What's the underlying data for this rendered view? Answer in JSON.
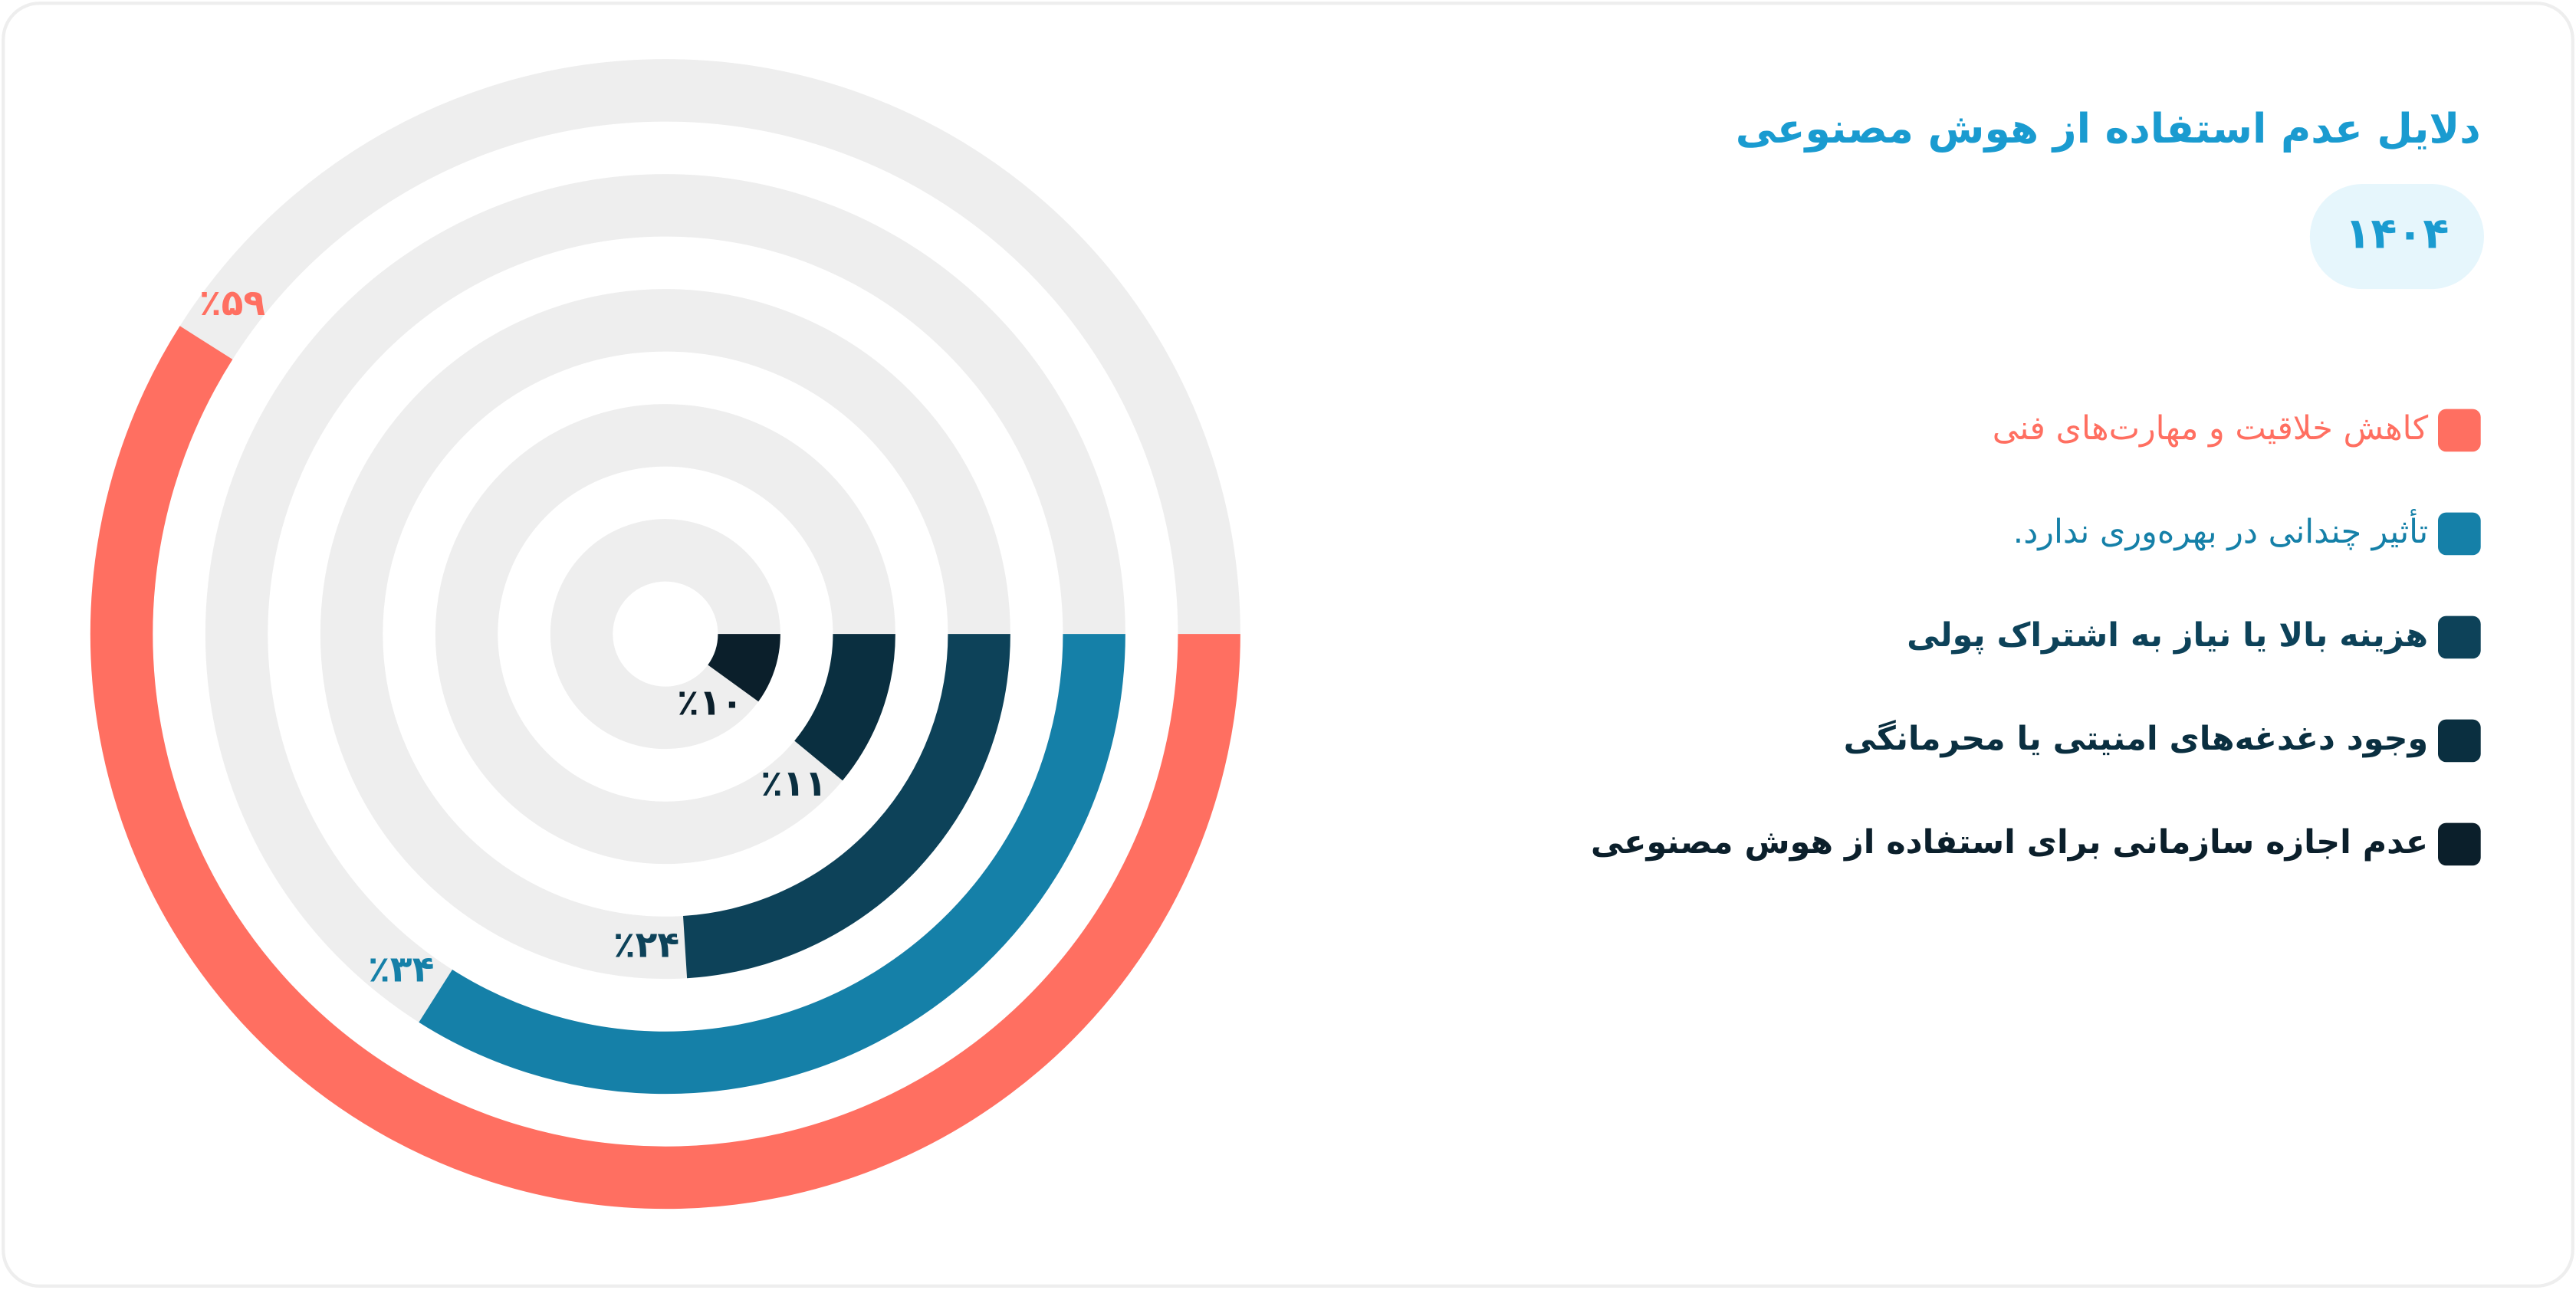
{
  "chart_data": {
    "type": "radial_bar",
    "title": "دلایل عدم استفاده از هوش مصنوعی",
    "subtitle": "۱۴۰۴",
    "categories": [
      "کاهش خلاقیت و مهارت‌های فنی",
      "تأثیر چندانی در بهره‌وری ندارد.",
      "هزینه بالا یا نیاز به اشتراک پولی",
      "وجود دغدغه‌های امنیتی یا محرمانگی",
      "عدم اجازه سازمانی برای استفاده از هوش مصنوعی"
    ],
    "values": [
      59,
      34,
      24,
      11,
      10
    ],
    "value_labels": [
      "٪۵۹",
      "٪۳۴",
      "٪۲۴",
      "٪۱۱",
      "٪۱۰"
    ],
    "colors": [
      "#ff6f61",
      "#1580a8",
      "#0d4259",
      "#0a2f40",
      "#0b1f2b"
    ],
    "ylim": [
      0,
      100
    ]
  }
}
